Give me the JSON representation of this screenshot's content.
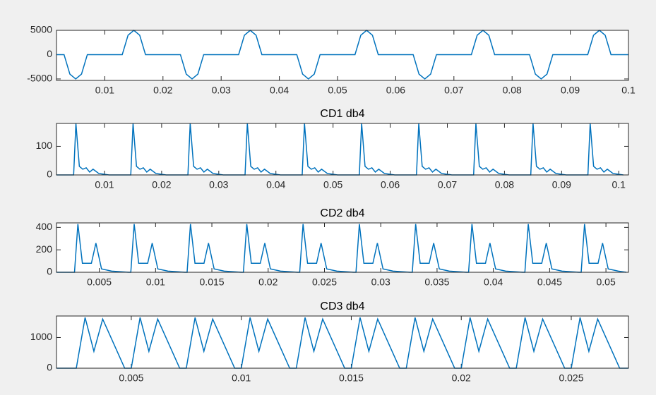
{
  "chart_data": [
    {
      "type": "line",
      "color": "#0072bd",
      "xlim": [
        0.0017,
        0.1
      ],
      "ylim": [
        -5300,
        5000
      ],
      "xticks": [
        0.01,
        0.02,
        0.03,
        0.04,
        0.05,
        0.06,
        0.07,
        0.08,
        0.09,
        0.1
      ],
      "yticks": [
        -5000,
        0,
        5000
      ],
      "x": [
        0.0017,
        0.003,
        0.004,
        0.005,
        0.006,
        0.007,
        0.013,
        0.014,
        0.015,
        0.016,
        0.017,
        0.023,
        0.024,
        0.025,
        0.026,
        0.027,
        0.033,
        0.034,
        0.035,
        0.036,
        0.037,
        0.043,
        0.044,
        0.045,
        0.046,
        0.047,
        0.053,
        0.054,
        0.055,
        0.056,
        0.057,
        0.063,
        0.064,
        0.065,
        0.066,
        0.067,
        0.073,
        0.074,
        0.075,
        0.076,
        0.077,
        0.083,
        0.084,
        0.085,
        0.086,
        0.087,
        0.093,
        0.094,
        0.095,
        0.096,
        0.097,
        0.1
      ],
      "values": [
        0,
        0,
        -4000,
        -5000,
        -4000,
        0,
        0,
        4000,
        5000,
        4000,
        0,
        0,
        -4000,
        -5000,
        -4000,
        0,
        0,
        4000,
        5000,
        4000,
        0,
        0,
        -4000,
        -5000,
        -4000,
        0,
        0,
        4000,
        5000,
        4000,
        0,
        0,
        -4000,
        -5000,
        -4000,
        0,
        0,
        4000,
        5000,
        4000,
        0,
        0,
        -4000,
        -5000,
        -4000,
        0,
        0,
        4000,
        5000,
        4000,
        0,
        0
      ]
    },
    {
      "type": "line",
      "title": "CD1 db4",
      "color": "#0072bd",
      "xlim": [
        0.0016,
        0.1017
      ],
      "ylim": [
        0,
        180
      ],
      "xticks": [
        0.01,
        0.02,
        0.03,
        0.04,
        0.05,
        0.06,
        0.07,
        0.08,
        0.09,
        0.1
      ],
      "yticks": [
        0,
        100
      ],
      "x": [
        0.0016,
        0.0046,
        0.005,
        0.0056,
        0.0062,
        0.0068,
        0.0074,
        0.008,
        0.009,
        0.0108,
        0.0146,
        0.015,
        0.0156,
        0.0162,
        0.0168,
        0.0174,
        0.018,
        0.019,
        0.0208,
        0.0246,
        0.025,
        0.0256,
        0.0262,
        0.0268,
        0.0274,
        0.028,
        0.029,
        0.0308,
        0.0346,
        0.035,
        0.0356,
        0.0362,
        0.0368,
        0.0374,
        0.038,
        0.039,
        0.0408,
        0.0446,
        0.045,
        0.0456,
        0.0462,
        0.0468,
        0.0474,
        0.048,
        0.049,
        0.0508,
        0.0546,
        0.055,
        0.0556,
        0.0562,
        0.0568,
        0.0574,
        0.058,
        0.059,
        0.0608,
        0.0646,
        0.065,
        0.0656,
        0.0662,
        0.0668,
        0.0674,
        0.068,
        0.069,
        0.0708,
        0.0746,
        0.075,
        0.0756,
        0.0762,
        0.0768,
        0.0774,
        0.078,
        0.079,
        0.0808,
        0.0846,
        0.085,
        0.0856,
        0.0862,
        0.0868,
        0.0874,
        0.088,
        0.089,
        0.0908,
        0.0946,
        0.095,
        0.0956,
        0.0962,
        0.0968,
        0.0974,
        0.098,
        0.099,
        0.1008
      ],
      "values": [
        0,
        0,
        180,
        30,
        20,
        25,
        10,
        20,
        5,
        0,
        0,
        180,
        30,
        20,
        25,
        10,
        20,
        5,
        0,
        0,
        180,
        30,
        20,
        25,
        10,
        20,
        5,
        0,
        0,
        180,
        30,
        20,
        25,
        10,
        20,
        5,
        0,
        0,
        180,
        30,
        20,
        25,
        10,
        20,
        5,
        0,
        0,
        180,
        30,
        20,
        25,
        10,
        20,
        5,
        0,
        0,
        180,
        30,
        20,
        25,
        10,
        20,
        5,
        0,
        0,
        180,
        30,
        20,
        25,
        10,
        20,
        5,
        0,
        0,
        180,
        30,
        20,
        25,
        10,
        20,
        5,
        0,
        0,
        180,
        30,
        20,
        25,
        10,
        20,
        5,
        0
      ]
    },
    {
      "type": "line",
      "title": "CD2 db4",
      "color": "#0072bd",
      "xlim": [
        0.0012,
        0.052
      ],
      "ylim": [
        0,
        440
      ],
      "xticks": [
        0.005,
        0.01,
        0.015,
        0.02,
        0.025,
        0.03,
        0.035,
        0.04,
        0.045,
        0.05
      ],
      "yticks": [
        0,
        200,
        400
      ],
      "x": [
        0.0012,
        0.0028,
        0.0031,
        0.0035,
        0.0043,
        0.0047,
        0.0052,
        0.0061,
        0.0076,
        0.0078,
        0.0081,
        0.0085,
        0.0093,
        0.0097,
        0.0102,
        0.0111,
        0.0126,
        0.0128,
        0.0131,
        0.0135,
        0.0143,
        0.0147,
        0.0152,
        0.0161,
        0.0176,
        0.0178,
        0.0181,
        0.0185,
        0.0193,
        0.0197,
        0.0202,
        0.0211,
        0.0226,
        0.0228,
        0.0231,
        0.0235,
        0.0243,
        0.0247,
        0.0252,
        0.0261,
        0.0276,
        0.0278,
        0.0281,
        0.0285,
        0.0293,
        0.0297,
        0.0302,
        0.0311,
        0.0326,
        0.0328,
        0.0331,
        0.0335,
        0.0343,
        0.0347,
        0.0352,
        0.0361,
        0.0376,
        0.0378,
        0.0381,
        0.0385,
        0.0393,
        0.0397,
        0.0402,
        0.0411,
        0.0426,
        0.0428,
        0.0431,
        0.0435,
        0.0443,
        0.0447,
        0.0452,
        0.0461,
        0.0476,
        0.0478,
        0.0481,
        0.0485,
        0.0493,
        0.0497,
        0.0502,
        0.0511,
        0.0518
      ],
      "values": [
        0,
        0,
        430,
        80,
        80,
        260,
        30,
        10,
        0,
        0,
        430,
        80,
        80,
        260,
        30,
        10,
        0,
        0,
        430,
        80,
        80,
        260,
        30,
        10,
        0,
        0,
        430,
        80,
        80,
        260,
        30,
        10,
        0,
        0,
        430,
        80,
        80,
        260,
        30,
        10,
        0,
        0,
        430,
        80,
        80,
        260,
        30,
        10,
        0,
        0,
        430,
        80,
        80,
        260,
        30,
        10,
        0,
        0,
        430,
        80,
        80,
        260,
        30,
        10,
        0,
        0,
        430,
        80,
        80,
        260,
        30,
        10,
        0,
        0,
        430,
        80,
        80,
        260,
        30,
        10,
        0
      ]
    },
    {
      "type": "line",
      "title": "CD3 db4",
      "color": "#0072bd",
      "xlim": [
        0.0016,
        0.0276
      ],
      "ylim": [
        0,
        1700
      ],
      "xticks": [
        0.005,
        0.01,
        0.015,
        0.02,
        0.025
      ],
      "yticks": [
        0,
        1000
      ],
      "x": [
        0.0016,
        0.0025,
        0.0029,
        0.0033,
        0.0037,
        0.0047,
        0.005,
        0.0054,
        0.0058,
        0.0062,
        0.0072,
        0.0075,
        0.0079,
        0.0083,
        0.0087,
        0.0097,
        0.01,
        0.0104,
        0.0108,
        0.0112,
        0.0122,
        0.0125,
        0.0129,
        0.0133,
        0.0137,
        0.0147,
        0.015,
        0.0154,
        0.0158,
        0.0162,
        0.0172,
        0.0175,
        0.0179,
        0.0183,
        0.0187,
        0.0197,
        0.02,
        0.0204,
        0.0208,
        0.0212,
        0.0222,
        0.0225,
        0.0229,
        0.0233,
        0.0237,
        0.0247,
        0.025,
        0.0254,
        0.0258,
        0.0262,
        0.0272,
        0.0276
      ],
      "values": [
        0,
        0,
        1650,
        550,
        1600,
        0,
        0,
        1650,
        550,
        1600,
        0,
        0,
        1650,
        550,
        1600,
        0,
        0,
        1650,
        550,
        1600,
        0,
        0,
        1650,
        550,
        1600,
        0,
        0,
        1650,
        550,
        1600,
        0,
        0,
        1650,
        550,
        1600,
        0,
        0,
        1650,
        550,
        1600,
        0,
        0,
        1650,
        550,
        1600,
        0,
        0,
        1650,
        550,
        1600,
        0,
        0
      ]
    }
  ]
}
